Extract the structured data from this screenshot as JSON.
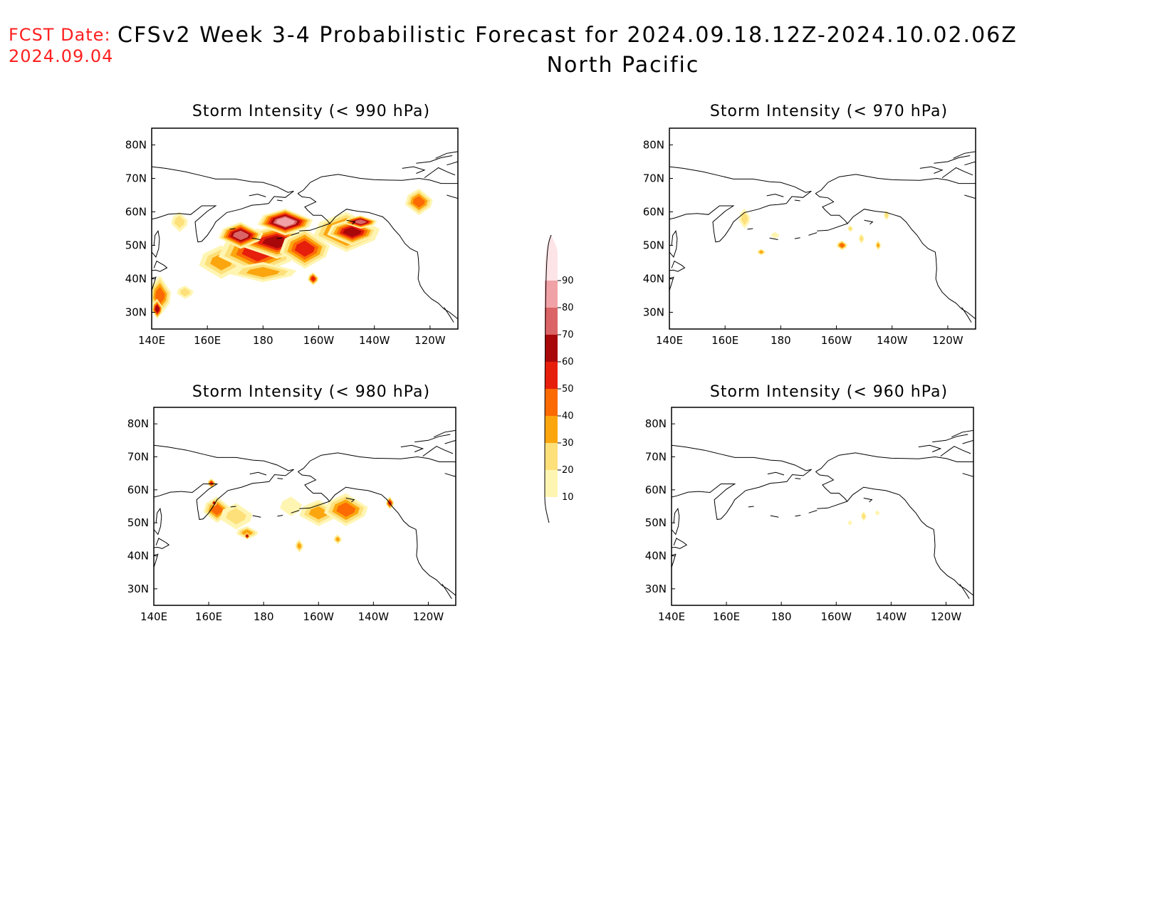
{
  "header": {
    "fcst_label": "FCST Date:",
    "fcst_date": "2024.09.04",
    "title_line1": "CFSv2 Week 3-4 Probabilistic Forecast for 2024.09.18.12Z-2024.10.02.06Z",
    "title_line2": "North Pacific"
  },
  "colors": {
    "levels": [
      10,
      20,
      30,
      40,
      50,
      60,
      70,
      80,
      90
    ],
    "fills": [
      "#fff5b3",
      "#fde07a",
      "#fba60f",
      "#fc6a04",
      "#e61e0c",
      "#a8080a",
      "#db6466",
      "#f0a2a6",
      "#fde4e6"
    ]
  },
  "chart_data": {
    "type": "heatmap",
    "colorbar": {
      "labels": [
        "90",
        "80",
        "70",
        "60",
        "50",
        "40",
        "30",
        "20",
        "10"
      ],
      "range": [
        10,
        100
      ]
    },
    "panels": [
      {
        "id": "p990",
        "title": "Storm Intensity (< 990 hPa)",
        "xticks": [
          "140E",
          "160E",
          "180",
          "160W",
          "140W",
          "120W"
        ],
        "yticks": [
          "80N",
          "70N",
          "60N",
          "50N",
          "40N",
          "30N"
        ],
        "blobs": [
          {
            "lon": 150,
            "lat": 57,
            "rx": 3,
            "ry": 3,
            "p": 20
          },
          {
            "lon": 143,
            "lat": 35,
            "rx": 4,
            "ry": 6,
            "p": 40
          },
          {
            "lon": 142,
            "lat": 31,
            "rx": 2,
            "ry": 3,
            "p": 60
          },
          {
            "lon": 152,
            "lat": 36,
            "rx": 3,
            "ry": 2,
            "p": 20
          },
          {
            "lon": 165,
            "lat": 45,
            "rx": 8,
            "ry": 5,
            "p": 30
          },
          {
            "lon": 178,
            "lat": 48,
            "rx": 14,
            "ry": 7,
            "p": 50
          },
          {
            "lon": 185,
            "lat": 51,
            "rx": 14,
            "ry": 5,
            "p": 60
          },
          {
            "lon": 172,
            "lat": 53,
            "rx": 8,
            "ry": 4,
            "p": 70
          },
          {
            "lon": 188,
            "lat": 57,
            "rx": 10,
            "ry": 4,
            "p": 80
          },
          {
            "lon": 195,
            "lat": 49,
            "rx": 9,
            "ry": 6,
            "p": 50
          },
          {
            "lon": 210,
            "lat": 54,
            "rx": 12,
            "ry": 6,
            "p": 50
          },
          {
            "lon": 212,
            "lat": 54,
            "rx": 9,
            "ry": 4,
            "p": 60
          },
          {
            "lon": 215,
            "lat": 57,
            "rx": 6,
            "ry": 2,
            "p": 70
          },
          {
            "lon": 198,
            "lat": 40,
            "rx": 2,
            "ry": 2,
            "p": 50
          },
          {
            "lon": 236,
            "lat": 63,
            "rx": 5,
            "ry": 4,
            "p": 40
          },
          {
            "lon": 180,
            "lat": 42,
            "rx": 12,
            "ry": 3,
            "p": 30
          }
        ]
      },
      {
        "id": "p970",
        "title": "Storm Intensity (< 970 hPa)",
        "xticks": [
          "140E",
          "160E",
          "180",
          "160W",
          "140W",
          "120W"
        ],
        "yticks": [
          "80N",
          "70N",
          "60N",
          "50N",
          "40N",
          "30N"
        ],
        "blobs": [
          {
            "lon": 167,
            "lat": 58,
            "rx": 2,
            "ry": 3,
            "p": 20
          },
          {
            "lon": 173,
            "lat": 48,
            "rx": 1.5,
            "ry": 1,
            "p": 30
          },
          {
            "lon": 178,
            "lat": 53,
            "rx": 1.5,
            "ry": 1,
            "p": 10
          },
          {
            "lon": 202,
            "lat": 50,
            "rx": 2,
            "ry": 1.5,
            "p": 40
          },
          {
            "lon": 205,
            "lat": 55,
            "rx": 1,
            "ry": 1,
            "p": 20
          },
          {
            "lon": 209,
            "lat": 52,
            "rx": 1,
            "ry": 1.5,
            "p": 20
          },
          {
            "lon": 215,
            "lat": 50,
            "rx": 1,
            "ry": 1.5,
            "p": 30
          },
          {
            "lon": 218,
            "lat": 59,
            "rx": 1,
            "ry": 1.5,
            "p": 20
          }
        ]
      },
      {
        "id": "p980",
        "title": "Storm Intensity (< 980 hPa)",
        "xticks": [
          "140E",
          "160E",
          "180",
          "160W",
          "140W",
          "120W"
        ],
        "yticks": [
          "80N",
          "70N",
          "60N",
          "50N",
          "40N",
          "30N"
        ],
        "blobs": [
          {
            "lon": 161,
            "lat": 62,
            "rx": 1.5,
            "ry": 1.5,
            "p": 50
          },
          {
            "lon": 163,
            "lat": 54,
            "rx": 5,
            "ry": 4,
            "p": 40
          },
          {
            "lon": 162,
            "lat": 56,
            "rx": 1,
            "ry": 1,
            "p": 60
          },
          {
            "lon": 170,
            "lat": 52,
            "rx": 6,
            "ry": 4,
            "p": 20
          },
          {
            "lon": 174,
            "lat": 47,
            "rx": 4,
            "ry": 2,
            "p": 30
          },
          {
            "lon": 174,
            "lat": 46,
            "rx": 1,
            "ry": 1,
            "p": 60
          },
          {
            "lon": 190,
            "lat": 55,
            "rx": 4,
            "ry": 3,
            "p": 10
          },
          {
            "lon": 200,
            "lat": 53,
            "rx": 7,
            "ry": 4,
            "p": 30
          },
          {
            "lon": 210,
            "lat": 54,
            "rx": 8,
            "ry": 5,
            "p": 40
          },
          {
            "lon": 193,
            "lat": 43,
            "rx": 1.5,
            "ry": 2,
            "p": 30
          },
          {
            "lon": 207,
            "lat": 45,
            "rx": 1.5,
            "ry": 1.5,
            "p": 30
          },
          {
            "lon": 226,
            "lat": 56,
            "rx": 1.5,
            "ry": 2,
            "p": 50
          }
        ]
      },
      {
        "id": "p960",
        "title": "Storm Intensity (< 960 hPa)",
        "xticks": [
          "140E",
          "160E",
          "180",
          "160W",
          "140W",
          "120W"
        ],
        "yticks": [
          "80N",
          "70N",
          "60N",
          "50N",
          "40N",
          "30N"
        ],
        "blobs": [
          {
            "lon": 205,
            "lat": 50,
            "rx": 0.8,
            "ry": 0.8,
            "p": 10
          },
          {
            "lon": 210,
            "lat": 52,
            "rx": 1,
            "ry": 1.5,
            "p": 20
          },
          {
            "lon": 215,
            "lat": 53,
            "rx": 0.8,
            "ry": 0.8,
            "p": 10
          }
        ]
      }
    ]
  }
}
